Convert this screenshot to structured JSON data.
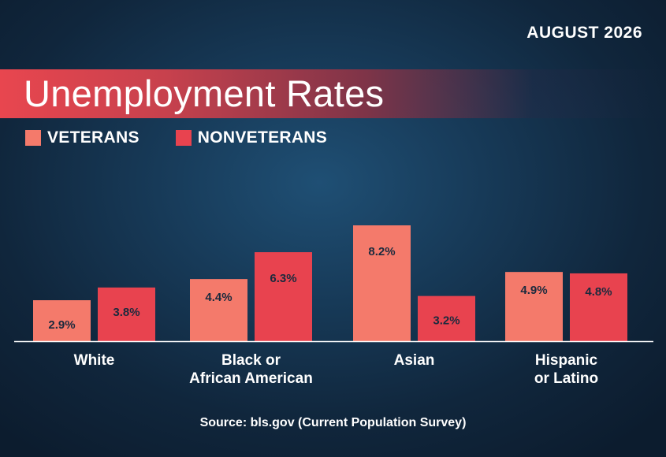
{
  "header": {
    "date": "AUGUST 2026",
    "title": "Unemployment Rates"
  },
  "colors": {
    "veterans": "#f47a6b",
    "nonveterans": "#e8434f",
    "label_text": "#1b2a3d",
    "axis": "#ffffff"
  },
  "chart_data": {
    "type": "bar",
    "title": "Unemployment Rates",
    "categories": [
      [
        "White"
      ],
      [
        "Black or",
        "African American"
      ],
      [
        "Asian"
      ],
      [
        "Hispanic",
        "or Latino"
      ]
    ],
    "series": [
      {
        "name": "VETERANS",
        "values": [
          2.9,
          4.4,
          8.2,
          4.9
        ],
        "labels": [
          "2.9%",
          "4.4%",
          "8.2%",
          "4.9%"
        ]
      },
      {
        "name": "NONVETERANS",
        "values": [
          3.8,
          6.3,
          3.2,
          4.8
        ],
        "labels": [
          "3.8%",
          "6.3%",
          "3.2%",
          "4.8%"
        ]
      }
    ],
    "ylim": [
      0,
      8.2
    ],
    "grid": false,
    "legend": "top-left"
  },
  "footer": {
    "source": "Source: bls.gov (Current Population Survey)"
  }
}
